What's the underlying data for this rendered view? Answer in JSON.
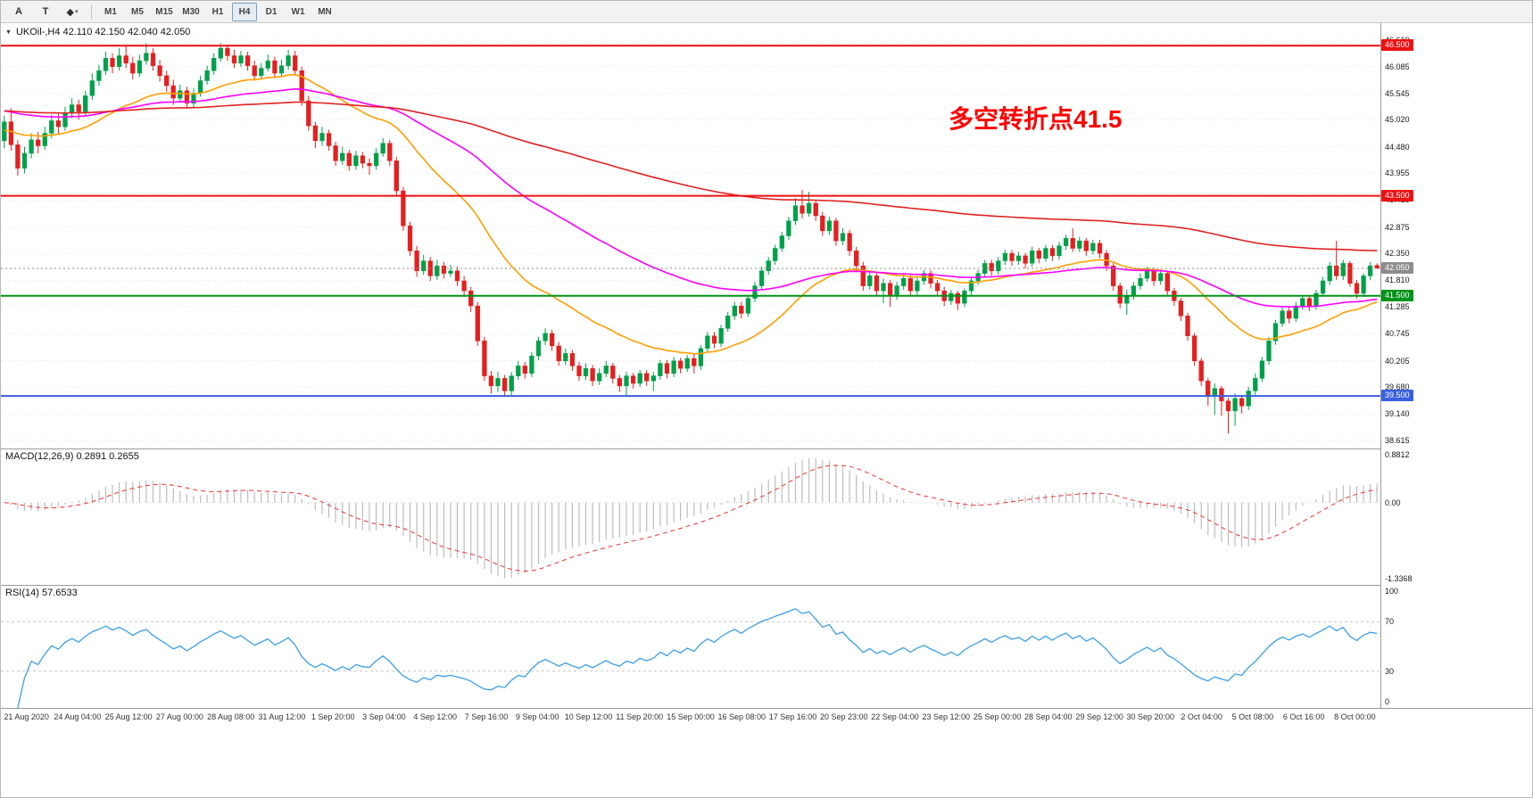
{
  "toolbar": {
    "tools": [
      {
        "name": "text-label-tool",
        "glyph": "A"
      },
      {
        "name": "text-box-tool",
        "glyph": "T"
      },
      {
        "name": "shapes-tool",
        "glyph": "◆",
        "caret": "▾"
      }
    ],
    "timeframes": [
      {
        "label": "M1",
        "active": false
      },
      {
        "label": "M5",
        "active": false
      },
      {
        "label": "M15",
        "active": false
      },
      {
        "label": "M30",
        "active": false
      },
      {
        "label": "H1",
        "active": false
      },
      {
        "label": "H4",
        "active": true
      },
      {
        "label": "D1",
        "active": false
      },
      {
        "label": "W1",
        "active": false
      },
      {
        "label": "MN",
        "active": false
      }
    ]
  },
  "symbol_bar": {
    "expander": "▼",
    "text": "UKOil-,H4 42.110 42.150 42.040 42.050"
  },
  "chart_data": {
    "type": "candlestick",
    "symbol": "UKOil-",
    "timeframe": "H4",
    "ohlc_current": {
      "open": 42.11,
      "high": 42.15,
      "low": 42.04,
      "close": 42.05
    },
    "annotation": {
      "text": "多空转折点41.5",
      "color": "#ff0000"
    },
    "colors": {
      "bull": "#00a04a",
      "bear": "#e32020"
    },
    "y_axis": {
      "min": 38.45,
      "max": 46.95,
      "ticks": [
        "46.610",
        "46.085",
        "45.545",
        "45.020",
        "44.480",
        "43.955",
        "43.415",
        "42.875",
        "42.350",
        "41.810",
        "41.285",
        "40.745",
        "40.205",
        "39.680",
        "39.140",
        "38.615"
      ]
    },
    "hlines": [
      {
        "value": 46.5,
        "label": "46.500",
        "color": "#ee1111"
      },
      {
        "value": 43.5,
        "label": "43.500",
        "color": "#ee1111"
      },
      {
        "value": 41.5,
        "label": "41.500",
        "color": "#009418"
      },
      {
        "value": 39.5,
        "label": "39.500",
        "color": "#3a5fe0"
      }
    ],
    "current_price": {
      "value": 42.05,
      "label": "42.050"
    },
    "mas": [
      {
        "name": "ma-fast",
        "period": 28,
        "seed": 44.8,
        "color": "#ff9f00",
        "width": 1.6
      },
      {
        "name": "ma-medium",
        "period": 72,
        "seed": 45.2,
        "color": "#ff00ff",
        "width": 1.6
      },
      {
        "name": "ma-slow",
        "period": 220,
        "seed": 45.2,
        "color": "#e02222",
        "width": 1.6
      }
    ],
    "macd": {
      "label_full": "MACD(12,26,9) 0.2891 0.2655",
      "params": [
        12,
        26,
        9
      ],
      "values": [
        0.2891,
        0.2655
      ],
      "y_ticks": [
        "0.8812",
        "0.00",
        "-1.3368"
      ],
      "y_min": -1.3368,
      "y_max": 0.8812,
      "histogram_color": "#bdbdbd",
      "signal_color": "#f03030"
    },
    "rsi": {
      "label_full": "RSI(14) 57.6533",
      "period": 14,
      "value": 57.6533,
      "y_ticks": [
        "100",
        "70",
        "30",
        "0"
      ],
      "levels": [
        70,
        30
      ],
      "line_color": "#3aa0e8"
    },
    "x_labels": [
      "21 Aug 2020",
      "24 Aug 04:00",
      "25 Aug 12:00",
      "27 Aug 00:00",
      "28 Aug 08:00",
      "31 Aug 12:00",
      "1 Sep 20:00",
      "3 Sep 04:00",
      "4 Sep 12:00",
      "7 Sep 16:00",
      "9 Sep 04:00",
      "10 Sep 12:00",
      "11 Sep 20:00",
      "15 Sep 00:00",
      "16 Sep 08:00",
      "17 Sep 16:00",
      "20 Sep 23:00",
      "22 Sep 04:00",
      "23 Sep 12:00",
      "25 Sep 00:00",
      "28 Sep 04:00",
      "29 Sep 12:00",
      "30 Sep 20:00",
      "2 Oct 04:00",
      "5 Oct 08:00",
      "6 Oct 16:00",
      "8 Oct 00:00"
    ],
    "candles": [
      [
        44.6,
        45.1,
        44.45,
        44.98
      ],
      [
        44.98,
        45.25,
        44.4,
        44.52
      ],
      [
        44.52,
        44.62,
        43.9,
        44.05
      ],
      [
        44.05,
        44.48,
        43.95,
        44.35
      ],
      [
        44.35,
        44.75,
        44.25,
        44.62
      ],
      [
        44.62,
        44.78,
        44.35,
        44.5
      ],
      [
        44.5,
        44.88,
        44.42,
        44.75
      ],
      [
        44.75,
        45.12,
        44.65,
        45.0
      ],
      [
        45.0,
        45.15,
        44.72,
        44.88
      ],
      [
        44.88,
        45.28,
        44.8,
        45.15
      ],
      [
        45.15,
        45.45,
        45.05,
        45.32
      ],
      [
        45.32,
        45.42,
        45.02,
        45.18
      ],
      [
        45.18,
        45.6,
        45.1,
        45.5
      ],
      [
        45.5,
        45.95,
        45.42,
        45.8
      ],
      [
        45.8,
        46.12,
        45.7,
        46.0
      ],
      [
        46.0,
        46.38,
        45.92,
        46.25
      ],
      [
        46.25,
        46.35,
        45.95,
        46.08
      ],
      [
        46.08,
        46.45,
        46.0,
        46.3
      ],
      [
        46.3,
        46.52,
        46.05,
        46.15
      ],
      [
        46.15,
        46.28,
        45.82,
        45.95
      ],
      [
        45.95,
        46.32,
        45.88,
        46.2
      ],
      [
        46.2,
        46.55,
        46.12,
        46.35
      ],
      [
        46.35,
        46.45,
        46.0,
        46.1
      ],
      [
        46.1,
        46.22,
        45.78,
        45.9
      ],
      [
        45.9,
        46.0,
        45.58,
        45.7
      ],
      [
        45.7,
        45.82,
        45.32,
        45.45
      ],
      [
        45.45,
        45.72,
        45.38,
        45.6
      ],
      [
        45.6,
        45.68,
        45.25,
        45.35
      ],
      [
        45.35,
        45.65,
        45.28,
        45.55
      ],
      [
        45.55,
        45.9,
        45.48,
        45.8
      ],
      [
        45.8,
        46.1,
        45.72,
        46.0
      ],
      [
        46.0,
        46.35,
        45.92,
        46.25
      ],
      [
        46.25,
        46.55,
        46.18,
        46.45
      ],
      [
        46.45,
        46.52,
        46.2,
        46.3
      ],
      [
        46.3,
        46.42,
        46.05,
        46.15
      ],
      [
        46.15,
        46.4,
        46.08,
        46.3
      ],
      [
        46.3,
        46.38,
        46.0,
        46.1
      ],
      [
        46.1,
        46.2,
        45.8,
        45.9
      ],
      [
        45.9,
        46.15,
        45.82,
        46.05
      ],
      [
        46.05,
        46.32,
        45.98,
        46.2
      ],
      [
        46.2,
        46.28,
        45.85,
        45.95
      ],
      [
        45.95,
        46.22,
        45.88,
        46.1
      ],
      [
        46.1,
        46.42,
        46.02,
        46.3
      ],
      [
        46.3,
        46.4,
        45.92,
        46.0
      ],
      [
        46.0,
        46.08,
        45.3,
        45.4
      ],
      [
        45.4,
        45.5,
        44.8,
        44.9
      ],
      [
        44.9,
        44.98,
        44.45,
        44.6
      ],
      [
        44.6,
        44.88,
        44.5,
        44.75
      ],
      [
        44.75,
        44.82,
        44.4,
        44.5
      ],
      [
        44.5,
        44.58,
        44.1,
        44.2
      ],
      [
        44.2,
        44.48,
        44.12,
        44.35
      ],
      [
        44.35,
        44.42,
        44.0,
        44.1
      ],
      [
        44.1,
        44.4,
        44.02,
        44.3
      ],
      [
        44.3,
        44.38,
        44.05,
        44.15
      ],
      [
        44.15,
        44.25,
        43.92,
        44.1
      ],
      [
        44.1,
        44.45,
        44.02,
        44.35
      ],
      [
        44.35,
        44.65,
        44.28,
        44.55
      ],
      [
        44.55,
        44.62,
        44.1,
        44.2
      ],
      [
        44.2,
        44.28,
        43.5,
        43.6
      ],
      [
        43.6,
        43.68,
        42.8,
        42.9
      ],
      [
        42.9,
        42.98,
        42.3,
        42.4
      ],
      [
        42.4,
        42.5,
        41.88,
        42.0
      ],
      [
        42.0,
        42.32,
        41.92,
        42.2
      ],
      [
        42.2,
        42.28,
        41.8,
        41.9
      ],
      [
        41.9,
        42.22,
        41.82,
        42.1
      ],
      [
        42.1,
        42.18,
        41.85,
        41.95
      ],
      [
        41.95,
        42.12,
        41.88,
        42.0
      ],
      [
        42.0,
        42.08,
        41.7,
        41.8
      ],
      [
        41.8,
        41.9,
        41.48,
        41.6
      ],
      [
        41.6,
        41.68,
        41.18,
        41.3
      ],
      [
        41.3,
        41.38,
        40.5,
        40.6
      ],
      [
        40.6,
        40.68,
        39.8,
        39.9
      ],
      [
        39.9,
        40.0,
        39.55,
        39.7
      ],
      [
        39.7,
        39.98,
        39.58,
        39.85
      ],
      [
        39.85,
        39.92,
        39.48,
        39.6
      ],
      [
        39.6,
        39.98,
        39.52,
        39.9
      ],
      [
        39.9,
        40.2,
        39.82,
        40.1
      ],
      [
        40.1,
        40.18,
        39.85,
        39.95
      ],
      [
        39.95,
        40.38,
        39.88,
        40.3
      ],
      [
        40.3,
        40.68,
        40.22,
        40.6
      ],
      [
        40.6,
        40.85,
        40.52,
        40.75
      ],
      [
        40.75,
        40.82,
        40.4,
        40.5
      ],
      [
        40.5,
        40.58,
        40.1,
        40.2
      ],
      [
        40.2,
        40.45,
        40.12,
        40.35
      ],
      [
        40.35,
        40.42,
        40.0,
        40.1
      ],
      [
        40.1,
        40.18,
        39.8,
        39.9
      ],
      [
        39.9,
        40.15,
        39.82,
        40.05
      ],
      [
        40.05,
        40.12,
        39.7,
        39.8
      ],
      [
        39.8,
        40.05,
        39.72,
        39.95
      ],
      [
        39.95,
        40.2,
        39.88,
        40.1
      ],
      [
        40.1,
        40.16,
        39.75,
        39.85
      ],
      [
        39.85,
        39.92,
        39.58,
        39.7
      ],
      [
        39.7,
        39.98,
        39.52,
        39.9
      ],
      [
        39.9,
        39.96,
        39.65,
        39.75
      ],
      [
        39.75,
        40.02,
        39.68,
        39.95
      ],
      [
        39.95,
        40.02,
        39.7,
        39.8
      ],
      [
        39.8,
        39.98,
        39.6,
        39.9
      ],
      [
        39.9,
        40.22,
        39.82,
        40.15
      ],
      [
        40.15,
        40.22,
        39.85,
        39.95
      ],
      [
        39.95,
        40.28,
        39.88,
        40.2
      ],
      [
        40.2,
        40.26,
        39.95,
        40.05
      ],
      [
        40.05,
        40.32,
        39.98,
        40.25
      ],
      [
        40.25,
        40.35,
        39.95,
        40.1
      ],
      [
        40.1,
        40.52,
        40.02,
        40.45
      ],
      [
        40.45,
        40.78,
        40.38,
        40.7
      ],
      [
        40.7,
        40.78,
        40.45,
        40.55
      ],
      [
        40.55,
        40.92,
        40.48,
        40.85
      ],
      [
        40.85,
        41.18,
        40.78,
        41.1
      ],
      [
        41.1,
        41.38,
        41.02,
        41.3
      ],
      [
        41.3,
        41.38,
        41.05,
        41.15
      ],
      [
        41.15,
        41.52,
        41.08,
        41.45
      ],
      [
        41.45,
        41.78,
        41.38,
        41.7
      ],
      [
        41.7,
        42.08,
        41.62,
        42.0
      ],
      [
        42.0,
        42.28,
        41.92,
        42.2
      ],
      [
        42.2,
        42.52,
        42.12,
        42.45
      ],
      [
        42.45,
        42.78,
        42.38,
        42.7
      ],
      [
        42.7,
        43.08,
        42.62,
        43.0
      ],
      [
        43.0,
        43.45,
        42.92,
        43.3
      ],
      [
        43.3,
        43.62,
        43.05,
        43.15
      ],
      [
        43.15,
        43.58,
        43.08,
        43.35
      ],
      [
        43.35,
        43.42,
        43.0,
        43.1
      ],
      [
        43.1,
        43.18,
        42.7,
        42.8
      ],
      [
        42.8,
        43.08,
        42.72,
        43.0
      ],
      [
        43.0,
        43.06,
        42.5,
        42.6
      ],
      [
        42.6,
        42.85,
        42.52,
        42.75
      ],
      [
        42.75,
        42.82,
        42.3,
        42.4
      ],
      [
        42.4,
        42.48,
        42.0,
        42.1
      ],
      [
        42.1,
        42.18,
        41.6,
        41.7
      ],
      [
        41.7,
        41.98,
        41.62,
        41.9
      ],
      [
        41.9,
        41.96,
        41.5,
        41.6
      ],
      [
        41.6,
        41.85,
        41.35,
        41.75
      ],
      [
        41.75,
        41.82,
        41.28,
        41.5
      ],
      [
        41.5,
        41.78,
        41.42,
        41.7
      ],
      [
        41.7,
        41.95,
        41.62,
        41.85
      ],
      [
        41.85,
        41.92,
        41.5,
        41.6
      ],
      [
        41.6,
        41.88,
        41.52,
        41.8
      ],
      [
        41.8,
        42.02,
        41.72,
        41.95
      ],
      [
        41.95,
        42.02,
        41.65,
        41.75
      ],
      [
        41.75,
        41.82,
        41.5,
        41.6
      ],
      [
        41.6,
        41.68,
        41.3,
        41.4
      ],
      [
        41.4,
        41.62,
        41.32,
        41.55
      ],
      [
        41.55,
        41.6,
        41.22,
        41.35
      ],
      [
        41.35,
        41.65,
        41.28,
        41.6
      ],
      [
        41.6,
        41.88,
        41.52,
        41.8
      ],
      [
        41.8,
        42.02,
        41.72,
        41.95
      ],
      [
        41.95,
        42.22,
        41.88,
        42.15
      ],
      [
        42.15,
        42.22,
        41.9,
        42.0
      ],
      [
        42.0,
        42.28,
        41.92,
        42.2
      ],
      [
        42.2,
        42.42,
        42.12,
        42.35
      ],
      [
        42.35,
        42.42,
        42.1,
        42.2
      ],
      [
        42.2,
        42.38,
        42.12,
        42.3
      ],
      [
        42.3,
        42.36,
        42.05,
        42.15
      ],
      [
        42.15,
        42.48,
        42.08,
        42.4
      ],
      [
        42.4,
        42.46,
        42.15,
        42.25
      ],
      [
        42.25,
        42.52,
        42.18,
        42.45
      ],
      [
        42.45,
        42.52,
        42.2,
        42.3
      ],
      [
        42.3,
        42.58,
        42.22,
        42.5
      ],
      [
        42.5,
        42.72,
        42.42,
        42.65
      ],
      [
        42.65,
        42.85,
        42.38,
        42.45
      ],
      [
        42.45,
        42.68,
        42.38,
        42.6
      ],
      [
        42.6,
        42.66,
        42.3,
        42.4
      ],
      [
        42.4,
        42.62,
        42.32,
        42.55
      ],
      [
        42.55,
        42.62,
        42.25,
        42.35
      ],
      [
        42.35,
        42.42,
        42.0,
        42.1
      ],
      [
        42.1,
        42.16,
        41.6,
        41.7
      ],
      [
        41.7,
        41.76,
        41.25,
        41.35
      ],
      [
        41.35,
        41.62,
        41.12,
        41.5
      ],
      [
        41.5,
        41.78,
        41.42,
        41.7
      ],
      [
        41.7,
        41.95,
        41.62,
        41.85
      ],
      [
        41.85,
        42.08,
        41.78,
        42.0
      ],
      [
        42.0,
        42.06,
        41.7,
        41.8
      ],
      [
        41.8,
        42.02,
        41.72,
        41.95
      ],
      [
        41.95,
        42.0,
        41.52,
        41.6
      ],
      [
        41.6,
        41.66,
        41.3,
        41.4
      ],
      [
        41.4,
        41.46,
        41.0,
        41.1
      ],
      [
        41.1,
        41.16,
        40.6,
        40.7
      ],
      [
        40.7,
        40.76,
        40.1,
        40.2
      ],
      [
        40.2,
        40.26,
        39.7,
        39.8
      ],
      [
        39.8,
        39.86,
        39.3,
        39.5
      ],
      [
        39.5,
        39.75,
        39.12,
        39.65
      ],
      [
        39.65,
        39.7,
        39.1,
        39.4
      ],
      [
        39.4,
        39.46,
        38.75,
        39.2
      ],
      [
        39.2,
        39.55,
        38.9,
        39.45
      ],
      [
        39.45,
        39.52,
        39.15,
        39.3
      ],
      [
        39.3,
        39.68,
        39.22,
        39.6
      ],
      [
        39.6,
        39.95,
        39.52,
        39.85
      ],
      [
        39.85,
        40.28,
        39.78,
        40.2
      ],
      [
        40.2,
        40.68,
        40.12,
        40.6
      ],
      [
        40.6,
        41.02,
        40.52,
        40.95
      ],
      [
        40.95,
        41.28,
        40.88,
        41.2
      ],
      [
        41.2,
        41.28,
        40.95,
        41.05
      ],
      [
        41.05,
        41.38,
        40.98,
        41.3
      ],
      [
        41.3,
        41.52,
        41.22,
        41.45
      ],
      [
        41.45,
        41.52,
        41.2,
        41.3
      ],
      [
        41.3,
        41.62,
        41.22,
        41.55
      ],
      [
        41.55,
        41.88,
        41.48,
        41.8
      ],
      [
        41.8,
        42.18,
        41.72,
        42.1
      ],
      [
        42.1,
        42.6,
        41.82,
        41.9
      ],
      [
        41.9,
        42.22,
        41.82,
        42.15
      ],
      [
        42.15,
        42.2,
        41.68,
        41.75
      ],
      [
        41.75,
        41.82,
        41.45,
        41.55
      ],
      [
        41.55,
        41.95,
        41.48,
        41.9
      ],
      [
        41.9,
        42.18,
        41.82,
        42.1
      ],
      [
        42.11,
        42.15,
        42.04,
        42.05
      ]
    ]
  }
}
